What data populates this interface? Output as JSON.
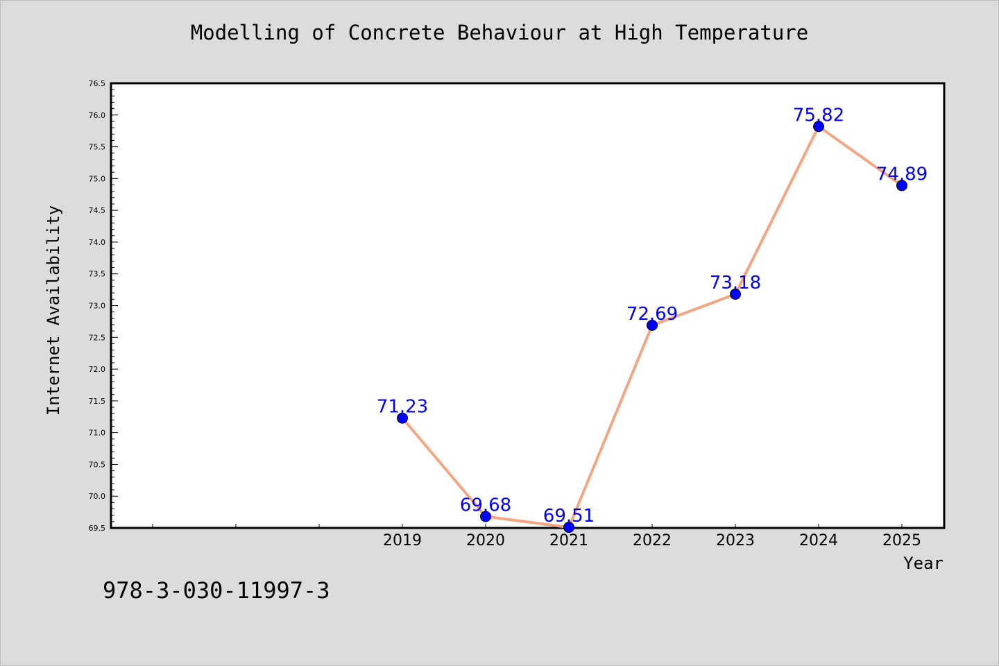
{
  "footer": {
    "isbn": "978-3-030-11997-3"
  },
  "colors": {
    "background": "#dcdcdc",
    "plot_bg": "#ffffff",
    "line": "#f4a582",
    "marker": "#0000ff",
    "label": "#0000ff"
  },
  "chart_data": {
    "type": "line",
    "title": "Modelling of Concrete Behaviour at High Temperature",
    "xlabel": "Year",
    "ylabel": "Internet Availability",
    "x": [
      "2019",
      "2020",
      "2021",
      "2022",
      "2023",
      "2024",
      "2025"
    ],
    "series": [
      {
        "values": [
          71.23,
          69.68,
          69.51,
          72.69,
          73.18,
          75.82,
          74.89
        ]
      }
    ],
    "data_labels": [
      "71.23",
      "69.68",
      "69.51",
      "72.69",
      "73.18",
      "75.82",
      "74.89"
    ],
    "ylim": [
      69.5,
      76.5
    ],
    "yticks": [
      "69.5",
      "70.0",
      "70.5",
      "71.0",
      "71.5",
      "72.0",
      "72.5",
      "73.0",
      "73.5",
      "74.0",
      "74.5",
      "75.0",
      "75.5",
      "76.0",
      "76.5"
    ],
    "grid": false,
    "legend": "none"
  }
}
